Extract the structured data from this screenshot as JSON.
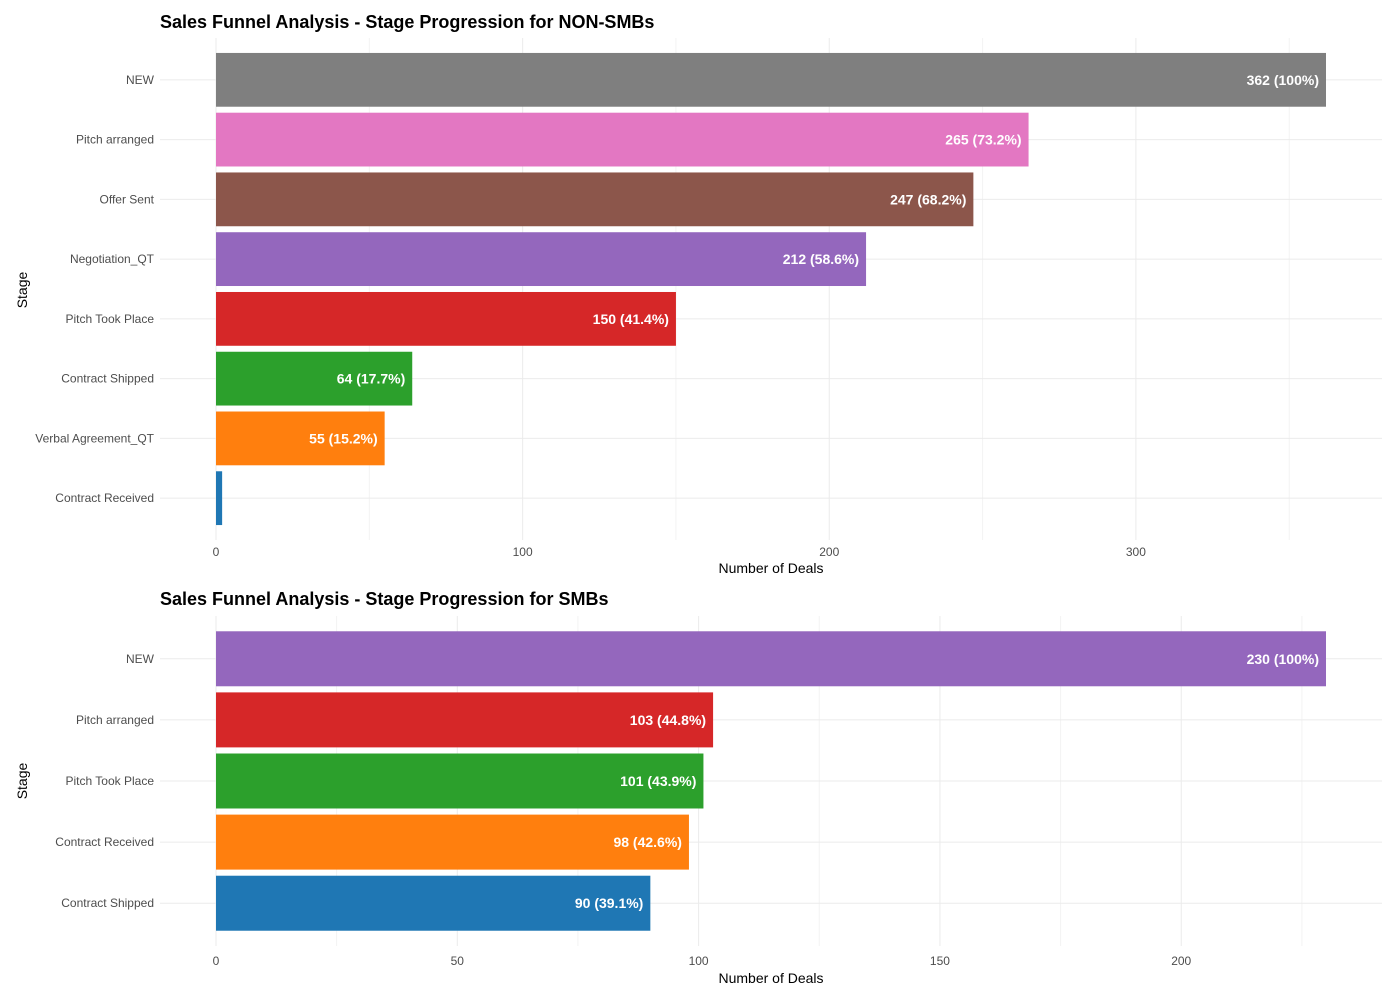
{
  "chart_data": [
    {
      "type": "bar",
      "orientation": "horizontal",
      "title": "Sales Funnel Analysis - Stage Progression for NON-SMBs",
      "xlabel": "Number of Deals",
      "ylabel": "Stage",
      "xlim": [
        0,
        362
      ],
      "x_ticks": [
        0,
        100,
        200,
        300
      ],
      "grid": true,
      "categories": [
        "NEW",
        "Pitch arranged",
        "Offer Sent",
        "Negotiation_QT",
        "Pitch Took Place",
        "Contract Shipped",
        "Verbal Agreement_QT",
        "Contract Received"
      ],
      "values": [
        362,
        265,
        247,
        212,
        150,
        64,
        55,
        2
      ],
      "labels": [
        "362 (100%)",
        "265 (73.2%)",
        "247 (68.2%)",
        "212 (58.6%)",
        "150 (41.4%)",
        "64 (17.7%)",
        "55 (15.2%)",
        ""
      ],
      "colors": [
        "#7f7f7f",
        "#e377c2",
        "#8c564b",
        "#9467bd",
        "#d62728",
        "#2ca02c",
        "#ff7f0e",
        "#1f77b4"
      ]
    },
    {
      "type": "bar",
      "orientation": "horizontal",
      "title": "Sales Funnel Analysis - Stage Progression for SMBs",
      "xlabel": "Number of Deals",
      "ylabel": "Stage",
      "xlim": [
        0,
        230
      ],
      "x_ticks": [
        0,
        50,
        100,
        150,
        200
      ],
      "grid": true,
      "categories": [
        "NEW",
        "Pitch arranged",
        "Pitch Took Place",
        "Contract Received",
        "Contract Shipped"
      ],
      "values": [
        230,
        103,
        101,
        98,
        90
      ],
      "labels": [
        "230 (100%)",
        "103 (44.8%)",
        "101 (43.9%)",
        "98 (42.6%)",
        "90 (39.1%)"
      ],
      "colors": [
        "#9467bd",
        "#d62728",
        "#2ca02c",
        "#ff7f0e",
        "#1f77b4"
      ]
    }
  ]
}
